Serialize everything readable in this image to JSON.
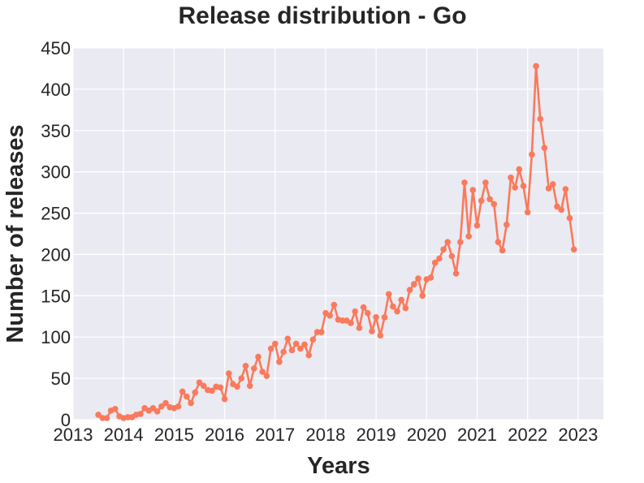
{
  "chart_data": {
    "type": "line",
    "title": "Release distribution - Go",
    "xlabel": "Years",
    "ylabel": "Number of releases",
    "xlim": [
      2013.0,
      2023.5
    ],
    "ylim": [
      0,
      450
    ],
    "xticks": [
      2013,
      2014,
      2015,
      2016,
      2017,
      2018,
      2019,
      2020,
      2021,
      2022,
      2023
    ],
    "yticks": [
      0,
      50,
      100,
      150,
      200,
      250,
      300,
      350,
      400,
      450
    ],
    "grid": true,
    "colors": {
      "background": "#eaeaf2",
      "grid": "#ffffff",
      "line": "#fa7a5c",
      "text": "#262626"
    },
    "series": [
      {
        "points": [
          [
            "2013-07",
            6
          ],
          [
            "2013-08",
            2
          ],
          [
            "2013-09",
            2
          ],
          [
            "2013-10",
            11
          ],
          [
            "2013-11",
            13
          ],
          [
            "2013-12",
            4
          ],
          [
            "2014-01",
            2
          ],
          [
            "2014-02",
            3
          ],
          [
            "2014-03",
            3
          ],
          [
            "2014-04",
            6
          ],
          [
            "2014-05",
            7
          ],
          [
            "2014-06",
            14
          ],
          [
            "2014-07",
            11
          ],
          [
            "2014-08",
            14
          ],
          [
            "2014-09",
            10
          ],
          [
            "2014-10",
            16
          ],
          [
            "2014-11",
            20
          ],
          [
            "2014-12",
            15
          ],
          [
            "2015-01",
            14
          ],
          [
            "2015-02",
            16
          ],
          [
            "2015-03",
            34
          ],
          [
            "2015-04",
            28
          ],
          [
            "2015-05",
            20
          ],
          [
            "2015-06",
            33
          ],
          [
            "2015-07",
            45
          ],
          [
            "2015-08",
            41
          ],
          [
            "2015-09",
            36
          ],
          [
            "2015-10",
            35
          ],
          [
            "2015-11",
            40
          ],
          [
            "2015-12",
            39
          ],
          [
            "2016-01",
            25
          ],
          [
            "2016-02",
            56
          ],
          [
            "2016-03",
            43
          ],
          [
            "2016-04",
            40
          ],
          [
            "2016-05",
            50
          ],
          [
            "2016-06",
            65
          ],
          [
            "2016-07",
            41
          ],
          [
            "2016-08",
            62
          ],
          [
            "2016-09",
            76
          ],
          [
            "2016-10",
            58
          ],
          [
            "2016-11",
            53
          ],
          [
            "2016-12",
            86
          ],
          [
            "2017-01",
            92
          ],
          [
            "2017-02",
            70
          ],
          [
            "2017-03",
            82
          ],
          [
            "2017-04",
            98
          ],
          [
            "2017-05",
            84
          ],
          [
            "2017-06",
            92
          ],
          [
            "2017-07",
            86
          ],
          [
            "2017-08",
            91
          ],
          [
            "2017-09",
            78
          ],
          [
            "2017-10",
            97
          ],
          [
            "2017-11",
            106
          ],
          [
            "2017-12",
            106
          ],
          [
            "2018-01",
            129
          ],
          [
            "2018-02",
            126
          ],
          [
            "2018-03",
            139
          ],
          [
            "2018-04",
            121
          ],
          [
            "2018-05",
            120
          ],
          [
            "2018-06",
            120
          ],
          [
            "2018-07",
            117
          ],
          [
            "2018-08",
            131
          ],
          [
            "2018-09",
            111
          ],
          [
            "2018-10",
            136
          ],
          [
            "2018-11",
            129
          ],
          [
            "2018-12",
            107
          ],
          [
            "2019-01",
            124
          ],
          [
            "2019-02",
            102
          ],
          [
            "2019-03",
            124
          ],
          [
            "2019-04",
            152
          ],
          [
            "2019-05",
            137
          ],
          [
            "2019-06",
            131
          ],
          [
            "2019-07",
            145
          ],
          [
            "2019-08",
            135
          ],
          [
            "2019-09",
            157
          ],
          [
            "2019-10",
            164
          ],
          [
            "2019-11",
            171
          ],
          [
            "2019-12",
            150
          ],
          [
            "2020-01",
            170
          ],
          [
            "2020-02",
            172
          ],
          [
            "2020-03",
            190
          ],
          [
            "2020-04",
            195
          ],
          [
            "2020-05",
            206
          ],
          [
            "2020-06",
            215
          ],
          [
            "2020-07",
            198
          ],
          [
            "2020-08",
            177
          ],
          [
            "2020-09",
            215
          ],
          [
            "2020-10",
            287
          ],
          [
            "2020-11",
            222
          ],
          [
            "2020-12",
            278
          ],
          [
            "2021-01",
            235
          ],
          [
            "2021-02",
            265
          ],
          [
            "2021-03",
            287
          ],
          [
            "2021-04",
            267
          ],
          [
            "2021-05",
            261
          ],
          [
            "2021-06",
            215
          ],
          [
            "2021-07",
            205
          ],
          [
            "2021-08",
            236
          ],
          [
            "2021-09",
            293
          ],
          [
            "2021-10",
            281
          ],
          [
            "2021-11",
            303
          ],
          [
            "2021-12",
            283
          ],
          [
            "2022-01",
            251
          ],
          [
            "2022-02",
            321
          ],
          [
            "2022-03",
            428
          ],
          [
            "2022-04",
            364
          ],
          [
            "2022-05",
            329
          ],
          [
            "2022-06",
            280
          ],
          [
            "2022-07",
            285
          ],
          [
            "2022-08",
            258
          ],
          [
            "2022-09",
            254
          ],
          [
            "2022-10",
            279
          ],
          [
            "2022-11",
            244
          ],
          [
            "2022-12",
            206
          ]
        ]
      }
    ]
  }
}
